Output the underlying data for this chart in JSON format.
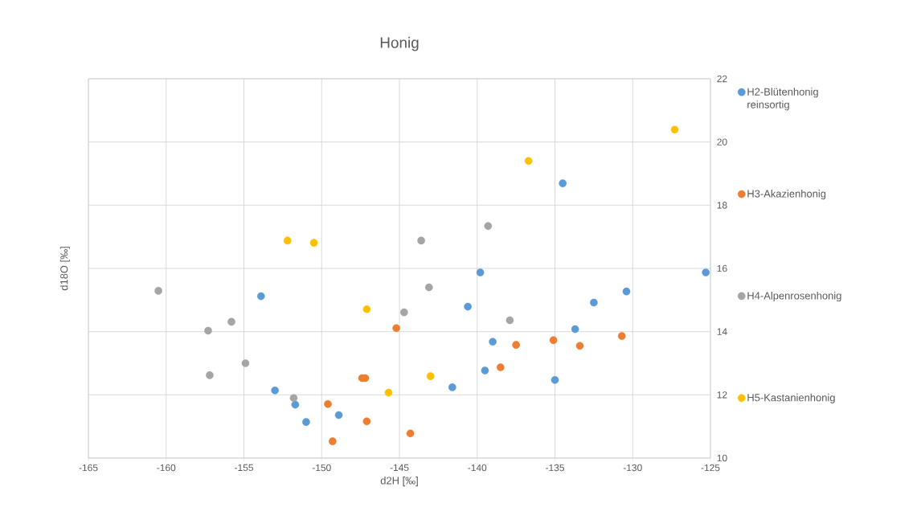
{
  "chart_data": {
    "type": "scatter",
    "title": "Honig",
    "xlabel": "d2H [‰]",
    "ylabel": "d18O [‰]",
    "xlim": [
      -165,
      -125
    ],
    "ylim": [
      10,
      22
    ],
    "xticks": [
      -165,
      -160,
      -155,
      -150,
      -145,
      -140,
      -135,
      -130,
      -125
    ],
    "yticks": [
      10,
      12,
      14,
      16,
      18,
      20,
      22
    ],
    "grid": true,
    "legend": "right",
    "marker": "circle",
    "series": [
      {
        "name": "H2-Blütenhonig reinsortig",
        "color": "#5b9bd5",
        "x": [
          -153.9,
          -153.0,
          -151.7,
          -151.0,
          -148.9,
          -141.6,
          -140.6,
          -139.8,
          -139.5,
          -139.0,
          -135.0,
          -134.5,
          -133.7,
          -132.5,
          -130.4,
          -125.3
        ],
        "values": [
          15.12,
          12.14,
          11.69,
          11.14,
          11.36,
          12.24,
          14.79,
          15.87,
          12.77,
          13.68,
          12.47,
          18.69,
          14.08,
          14.92,
          15.27,
          15.87
        ]
      },
      {
        "name": "H3-Akazienhonig",
        "color": "#ed7d31",
        "x": [
          -149.6,
          -149.3,
          -147.4,
          -147.2,
          -147.1,
          -145.2,
          -144.3,
          -138.5,
          -137.5,
          -135.1,
          -133.4,
          -130.7
        ],
        "values": [
          11.71,
          10.53,
          12.53,
          12.53,
          11.16,
          14.11,
          10.78,
          12.87,
          13.58,
          13.73,
          13.55,
          13.86
        ]
      },
      {
        "name": "H4-Alpenrosenhonig",
        "color": "#a5a5a5",
        "x": [
          -160.5,
          -157.3,
          -157.2,
          -155.8,
          -154.9,
          -151.8,
          -144.7,
          -143.6,
          -143.1,
          -139.3,
          -137.9
        ],
        "values": [
          15.29,
          14.03,
          12.62,
          14.31,
          13.0,
          11.9,
          14.61,
          16.88,
          15.4,
          17.34,
          14.36
        ]
      },
      {
        "name": "H5-Kastanienhonig",
        "color": "#ffc000",
        "x": [
          -152.2,
          -150.5,
          -147.1,
          -145.7,
          -143.0,
          -136.7,
          -127.3
        ],
        "values": [
          16.88,
          16.81,
          14.71,
          12.07,
          12.59,
          19.4,
          20.39
        ]
      }
    ]
  }
}
